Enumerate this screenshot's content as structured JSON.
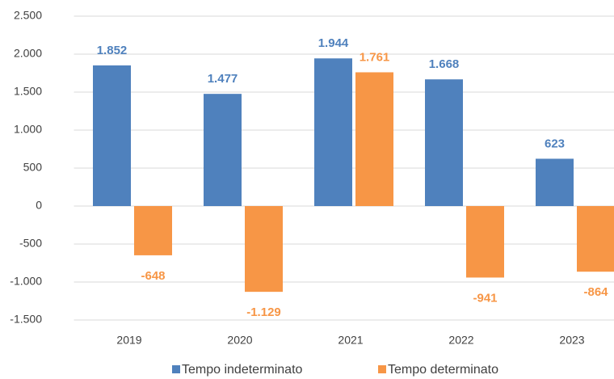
{
  "chart_data": {
    "type": "bar",
    "categories": [
      "2019",
      "2020",
      "2021",
      "2022",
      "2023"
    ],
    "series": [
      {
        "name": "Tempo indeterminato",
        "color": "#4f81bd",
        "values": [
          1852,
          1477,
          1944,
          1668,
          623
        ],
        "value_labels": [
          "1.852",
          "1.477",
          "1.944",
          "1.668",
          "623"
        ]
      },
      {
        "name": "Tempo determinato",
        "color": "#f79646",
        "values": [
          -648,
          -1129,
          1761,
          -941,
          -864
        ],
        "value_labels": [
          "-648",
          "-1.129",
          "1.761",
          "-941",
          "-864"
        ]
      }
    ],
    "ylim": [
      -1500,
      2500
    ],
    "yticks": [
      {
        "value": -1500,
        "label": "-1.500"
      },
      {
        "value": -1000,
        "label": "-1.000"
      },
      -500,
      0,
      500,
      {
        "value": 1000,
        "label": "1.000"
      },
      {
        "value": 1500,
        "label": "1.500"
      },
      {
        "value": 2000,
        "label": "2.000"
      },
      {
        "value": 2500,
        "label": "2.500"
      }
    ],
    "grid": true,
    "legend": "bottom"
  }
}
